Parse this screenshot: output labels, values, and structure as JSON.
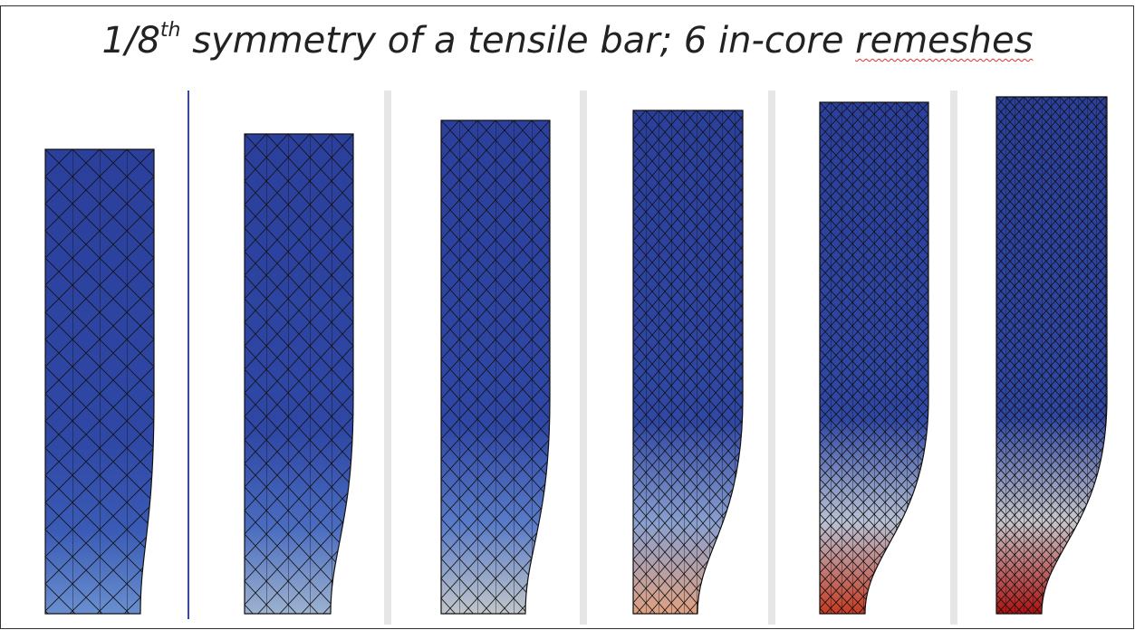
{
  "header": {
    "title": {
      "parts": [
        "1/8",
        "th",
        " symmetry of a tensile bar; 6 in-core ",
        "remeshes"
      ]
    }
  }
}
